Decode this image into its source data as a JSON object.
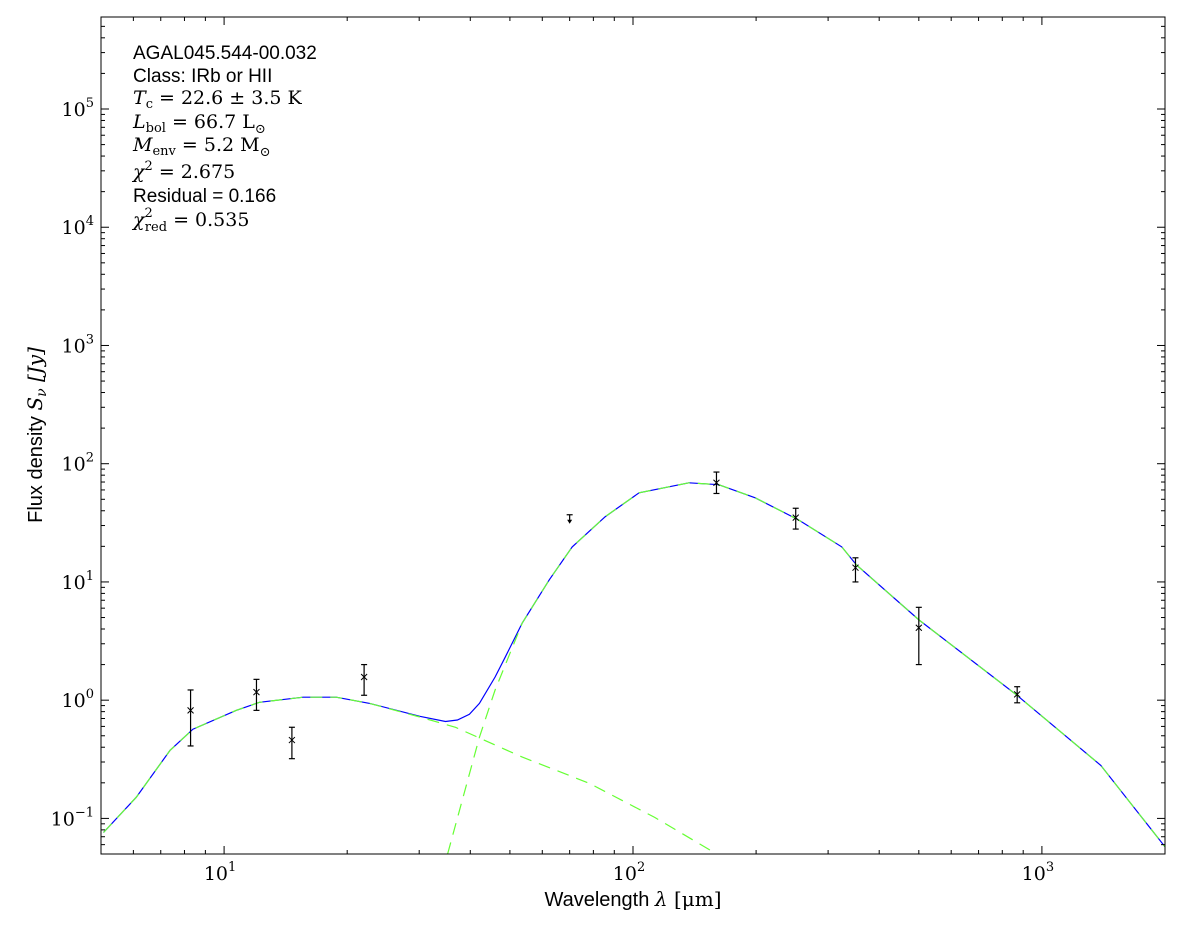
{
  "chart_data": {
    "type": "scatter",
    "xlabel": "Wavelength λ [μm]",
    "xlabel_parts": {
      "text": "Wavelength ",
      "sym": "λ",
      "unit": " [μm]"
    },
    "ylabel_parts": {
      "text": "Flux density ",
      "sym": "S",
      "sub": "ν",
      "unit": " [Jy]"
    },
    "xscale": "log",
    "yscale": "log",
    "xlim": [
      5,
      2000
    ],
    "ylim": [
      0.05,
      600000
    ],
    "grid": false,
    "x_ticks": [
      {
        "base": "10",
        "exp": "1",
        "value": 10
      },
      {
        "base": "10",
        "exp": "2",
        "value": 100
      },
      {
        "base": "10",
        "exp": "3",
        "value": 1000
      }
    ],
    "y_ticks": [
      {
        "base": "10",
        "exp": "−1",
        "value": 0.1
      },
      {
        "base": "10",
        "exp": "0",
        "value": 1
      },
      {
        "base": "10",
        "exp": "1",
        "value": 10
      },
      {
        "base": "10",
        "exp": "2",
        "value": 100
      },
      {
        "base": "10",
        "exp": "3",
        "value": 1000
      },
      {
        "base": "10",
        "exp": "4",
        "value": 10000
      },
      {
        "base": "10",
        "exp": "5",
        "value": 100000
      }
    ],
    "annotations": {
      "name": "AGAL045.544-00.032",
      "class": "Class: IRb or HII",
      "tc": {
        "sym": "T",
        "sub": "c",
        "rest": " = 22.6 ± 3.5 K"
      },
      "lbol": {
        "sym": "L",
        "sub": "bol",
        "rest": " = 66.7 L",
        "sun": "⊙"
      },
      "menv": {
        "sym": "M",
        "sub": "env",
        "rest": " = 5.2 M",
        "sun": "⊙"
      },
      "chi2": {
        "sym": "χ",
        "sup": "2",
        "rest": " = 2.675"
      },
      "residual": "Residual = 0.166",
      "chi2red": {
        "sym": "χ",
        "sup": "2",
        "sub": "red",
        "rest": " = 0.535"
      }
    },
    "measurements": [
      {
        "x": 8.28,
        "y": 0.82,
        "ylo": 0.41,
        "yhi": 1.22
      },
      {
        "x": 12,
        "y": 1.17,
        "ylo": 0.82,
        "yhi": 1.5
      },
      {
        "x": 14.65,
        "y": 0.46,
        "ylo": 0.32,
        "yhi": 0.59
      },
      {
        "x": 22,
        "y": 1.57,
        "ylo": 1.1,
        "yhi": 2.0
      },
      {
        "x": 160,
        "y": 69,
        "ylo": 56,
        "yhi": 85
      },
      {
        "x": 250,
        "y": 35,
        "ylo": 28,
        "yhi": 42
      },
      {
        "x": 350,
        "y": 13.2,
        "ylo": 10,
        "yhi": 16
      },
      {
        "x": 500,
        "y": 4.1,
        "ylo": 2.0,
        "yhi": 6.1
      },
      {
        "x": 870,
        "y": 1.12,
        "ylo": 0.95,
        "yhi": 1.3
      }
    ],
    "upper_limits": [
      {
        "x": 70,
        "y": 37
      }
    ],
    "series": [
      {
        "style": "solid",
        "color": "#0000ff",
        "x": [
          5.07,
          6.1,
          7.38,
          8.39,
          10.7,
          12.2,
          15.6,
          18.8,
          22.7,
          30.1,
          34.8,
          37.2,
          39.8,
          42.1,
          46.0,
          48.7,
          53.6,
          62.4,
          71.0,
          85.5,
          103.5,
          137,
          162,
          199,
          254,
          324,
          352,
          501,
          869,
          1393,
          2005
        ],
        "y": [
          0.076,
          0.151,
          0.377,
          0.568,
          0.82,
          0.96,
          1.06,
          1.06,
          0.94,
          0.73,
          0.66,
          0.68,
          0.76,
          0.94,
          1.57,
          2.31,
          4.5,
          10.4,
          19.8,
          35.6,
          56.8,
          69,
          66.4,
          51.5,
          33.5,
          19.8,
          13.9,
          4.76,
          1.1,
          0.281,
          0.057
        ]
      },
      {
        "style": "dashed",
        "color": "#66ff33",
        "x": [
          5.07,
          6.1,
          7.38,
          8.39,
          10.7,
          12.2,
          15.6,
          18.8,
          22.7,
          30.1,
          36.8,
          53.6,
          78.2,
          113,
          158
        ],
        "y": [
          0.076,
          0.151,
          0.377,
          0.568,
          0.82,
          0.96,
          1.06,
          1.06,
          0.94,
          0.72,
          0.59,
          0.33,
          0.198,
          0.102,
          0.0515
        ]
      },
      {
        "style": "dashed",
        "color": "#66ff33",
        "x": [
          35.2,
          42.1,
          46.0,
          53.6,
          62.4,
          71.0,
          85.5,
          103.5,
          137,
          162,
          199,
          254,
          324,
          352,
          501,
          869,
          1393,
          2005
        ],
        "y": [
          0.05,
          0.485,
          1.22,
          4.5,
          10.4,
          19.8,
          35.6,
          56.8,
          69,
          66.4,
          51.5,
          33.5,
          19.8,
          13.9,
          4.76,
          1.1,
          0.281,
          0.057
        ]
      }
    ],
    "colors": {
      "model_total": "#0000ff",
      "model_components": "#66ff33",
      "data": "#000000"
    }
  }
}
